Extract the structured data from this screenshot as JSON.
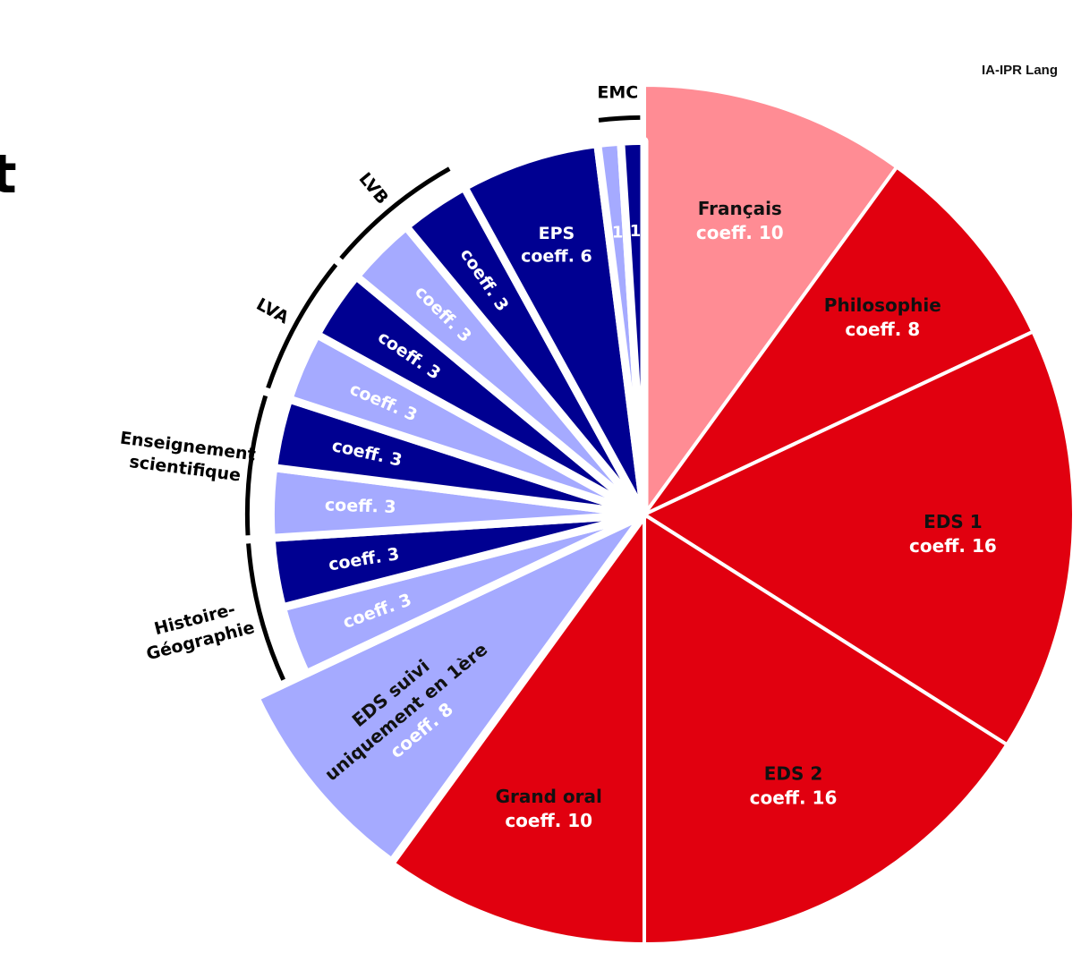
{
  "header_note": "IA-IPR Lang",
  "left_glyph": "t",
  "chart_data": {
    "type": "pie",
    "start_angle": 0,
    "direction": "clockwise",
    "slices": [
      {
        "label": "Français",
        "coeff_text": "coeff. 10",
        "value": 10,
        "color": "#FF8C94",
        "text_color": "#FFFFFF",
        "label_color": "#111111",
        "outer": 1.0
      },
      {
        "label": "Philosophie",
        "coeff_text": "coeff. 8",
        "value": 8,
        "color": "#E1000F",
        "text_color": "#FFFFFF",
        "label_color": "#111111",
        "outer": 1.0
      },
      {
        "label": "EDS 1",
        "coeff_text": "coeff. 16",
        "value": 16,
        "color": "#E1000F",
        "text_color": "#FFFFFF",
        "label_color": "#111111",
        "outer": 1.0
      },
      {
        "label": "EDS 2",
        "coeff_text": "coeff. 16",
        "value": 16,
        "color": "#E1000F",
        "text_color": "#FFFFFF",
        "label_color": "#111111",
        "outer": 1.0
      },
      {
        "label": "Grand oral",
        "coeff_text": "coeff. 10",
        "value": 10,
        "color": "#E1000F",
        "text_color": "#FFFFFF",
        "label_color": "#111111",
        "outer": 1.0
      },
      {
        "label": "EDS suivi uniquement en 1ère",
        "coeff_text": "coeff. 8",
        "value": 8,
        "color": "#A5AAFF",
        "text_color": "#FFFFFF",
        "label_color": "#111111",
        "outer": 1.0
      },
      {
        "label": "",
        "coeff_text": "coeff. 3",
        "value": 3,
        "color": "#A5AAFF",
        "text_color": "#FFFFFF",
        "outer": 0.87
      },
      {
        "label": "",
        "coeff_text": "coeff. 3",
        "value": 3,
        "color": "#000091",
        "text_color": "#FFFFFF",
        "outer": 0.87
      },
      {
        "label": "",
        "coeff_text": "coeff. 3",
        "value": 3,
        "color": "#A5AAFF",
        "text_color": "#FFFFFF",
        "outer": 0.87
      },
      {
        "label": "",
        "coeff_text": "coeff. 3",
        "value": 3,
        "color": "#000091",
        "text_color": "#FFFFFF",
        "outer": 0.87
      },
      {
        "label": "",
        "coeff_text": "coeff. 3",
        "value": 3,
        "color": "#A5AAFF",
        "text_color": "#FFFFFF",
        "outer": 0.87
      },
      {
        "label": "",
        "coeff_text": "coeff. 3",
        "value": 3,
        "color": "#000091",
        "text_color": "#FFFFFF",
        "outer": 0.87
      },
      {
        "label": "",
        "coeff_text": "coeff. 3",
        "value": 3,
        "color": "#A5AAFF",
        "text_color": "#FFFFFF",
        "outer": 0.87
      },
      {
        "label": "",
        "coeff_text": "coeff. 3",
        "value": 3,
        "color": "#000091",
        "text_color": "#FFFFFF",
        "outer": 0.87
      },
      {
        "label": "EPS",
        "coeff_text": "coeff. 6",
        "value": 6,
        "color": "#000091",
        "text_color": "#FFFFFF",
        "label_color": "#FFFFFF",
        "outer": 0.87
      },
      {
        "label": "",
        "coeff_text": "1",
        "value": 1,
        "color": "#A5AAFF",
        "text_color": "#FFFFFF",
        "outer": 0.87
      },
      {
        "label": "",
        "coeff_text": "1",
        "value": 1,
        "color": "#000091",
        "text_color": "#FFFFFF",
        "outer": 0.87
      }
    ],
    "groups": [
      {
        "name": "Histoire-Géographie",
        "slices": [
          6,
          7
        ]
      },
      {
        "name": "Enseignement scientifique",
        "slices": [
          8,
          9
        ]
      },
      {
        "name": "LVA",
        "slices": [
          10,
          11
        ]
      },
      {
        "name": "LVB",
        "slices": [
          12,
          13
        ]
      },
      {
        "name": "EMC",
        "slices": [
          15,
          16
        ]
      }
    ]
  }
}
